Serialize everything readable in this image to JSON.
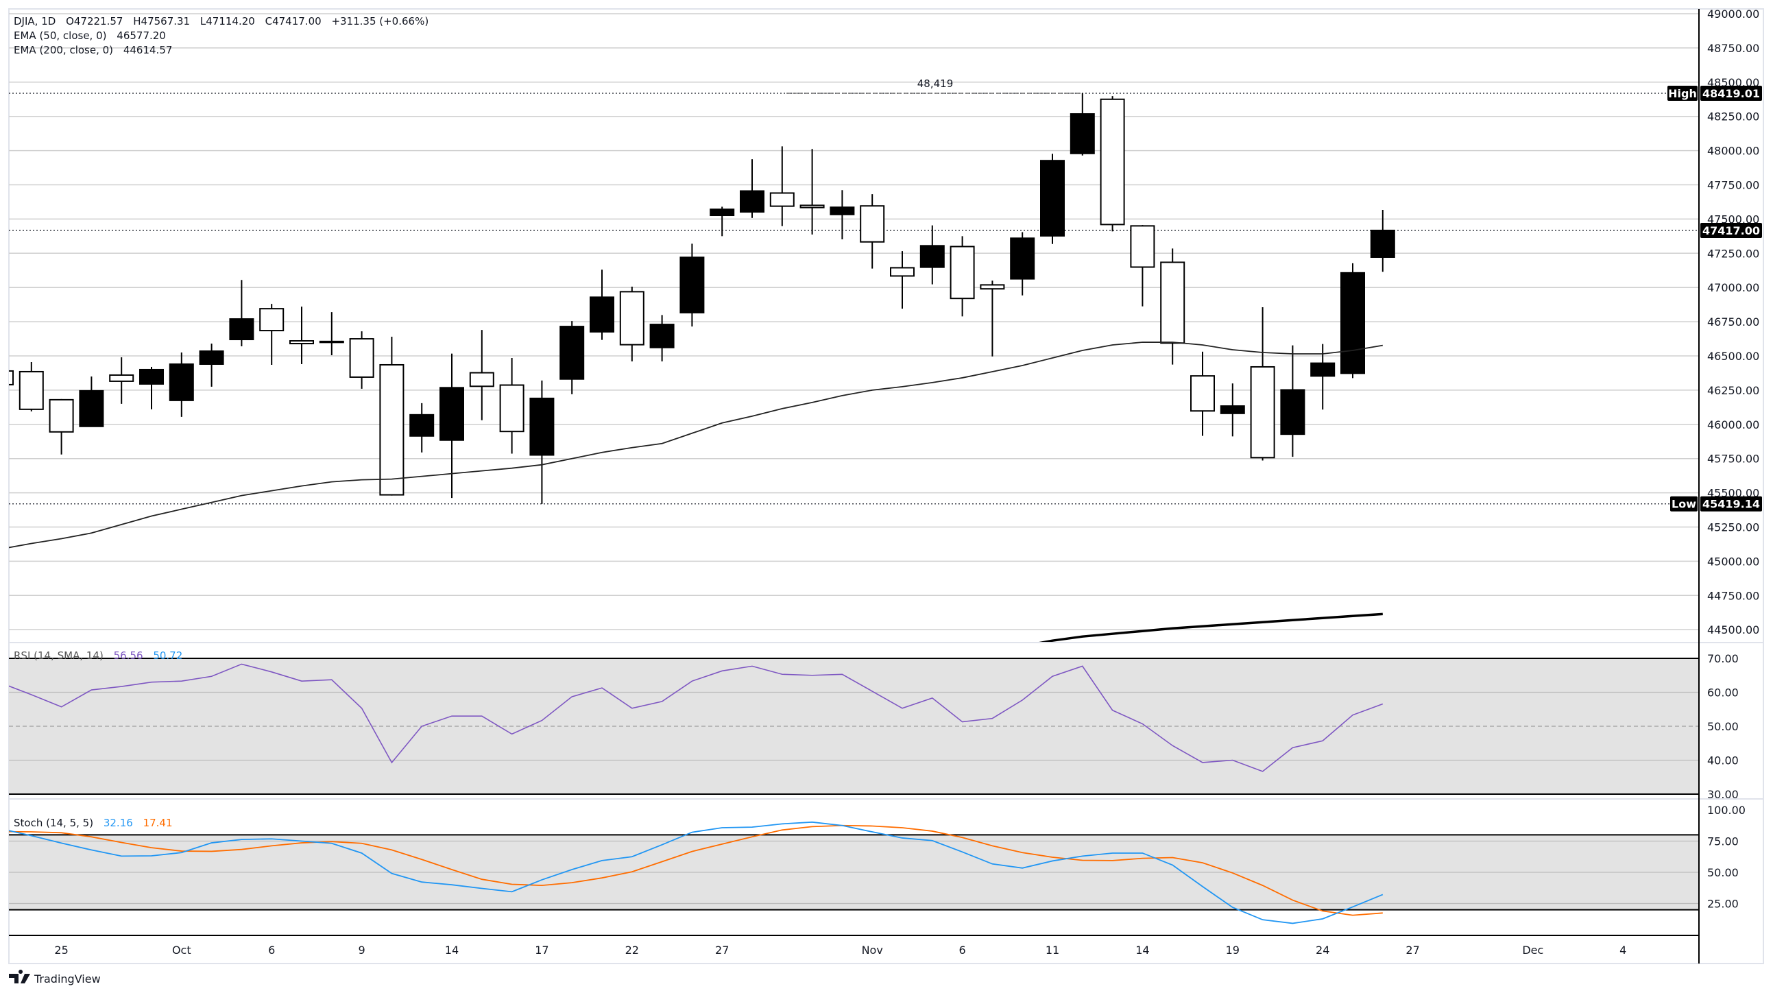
{
  "header": {
    "symbol": "DJIA, 1D",
    "open": "O47221.57",
    "high": "H47567.31",
    "low": "L47114.20",
    "close": "C47417.00",
    "change": "+311.35 (+0.66%)",
    "ema50_label": "EMA (50, close, 0)",
    "ema50_value": "46577.20",
    "ema200_label": "EMA (200, close, 0)",
    "ema200_value": "44614.57"
  },
  "price_tags": {
    "high_label": "High",
    "high_value": "48419.01",
    "low_label": "Low",
    "low_value": "45419.14",
    "last_value": "47417.00",
    "range_high_annotation": "48,419"
  },
  "rsi_legend": {
    "label": "RSI (14, SMA, 14)",
    "rsi": "56.56",
    "sma": "50.72"
  },
  "stoch_legend": {
    "label": "Stoch (14, 5, 5)",
    "k": "32.16",
    "d": "17.41"
  },
  "time_axis": [
    "25",
    "Oct",
    "6",
    "9",
    "14",
    "17",
    "22",
    "27",
    "Nov",
    "6",
    "11",
    "14",
    "19",
    "24",
    "27",
    "Dec",
    "4"
  ],
  "brand": "TradingView",
  "colors": {
    "up": "#000000",
    "down": "#ffffff",
    "rsi": "#7e57c2",
    "rsi_sma": "#2196f3",
    "stoch_k": "#2196f3",
    "stoch_d": "#ff6d00",
    "band": "#e3e3e3",
    "grid": "#cfcfcf"
  },
  "chart_data": [
    {
      "type": "candlestick",
      "title": "DJIA, 1D",
      "ylim": [
        44500,
        49000
      ],
      "yticks": [
        "49000.00",
        "48750.00",
        "48500.00",
        "48250.00",
        "48000.00",
        "47750.00",
        "47500.00",
        "47250.00",
        "47000.00",
        "46750.00",
        "46500.00",
        "46250.00",
        "46000.00",
        "45750.00",
        "45500.00",
        "45250.00",
        "45000.00",
        "44750.00",
        "44500.00"
      ],
      "grid": true,
      "dates": [
        "Sep 23",
        "Sep 24",
        "Sep 25",
        "Sep 26",
        "Sep 29",
        "Sep 30",
        "Oct 1",
        "Oct 2",
        "Oct 3",
        "Oct 6",
        "Oct 7",
        "Oct 8",
        "Oct 9",
        "Oct 10",
        "Oct 13",
        "Oct 14",
        "Oct 15",
        "Oct 16",
        "Oct 17",
        "Oct 20",
        "Oct 21",
        "Oct 22",
        "Oct 23",
        "Oct 24",
        "Oct 27",
        "Oct 28",
        "Oct 29",
        "Oct 30",
        "Oct 31",
        "Nov 3",
        "Nov 4",
        "Nov 5",
        "Nov 6",
        "Nov 7",
        "Nov 10",
        "Nov 11",
        "Nov 12",
        "Nov 13",
        "Nov 14",
        "Nov 17",
        "Nov 18",
        "Nov 19",
        "Nov 20",
        "Nov 21",
        "Nov 24",
        "Nov 25",
        "Nov 26"
      ],
      "ohlc": [
        [
          46390,
          46450,
          46150,
          46290
        ],
        [
          46385,
          46455,
          46095,
          46110
        ],
        [
          46180,
          46185,
          45780,
          45945
        ],
        [
          45985,
          46350,
          45985,
          46245
        ],
        [
          46360,
          46490,
          46150,
          46315
        ],
        [
          46295,
          46420,
          46110,
          46400
        ],
        [
          46175,
          46525,
          46055,
          46440
        ],
        [
          46440,
          46590,
          46275,
          46535
        ],
        [
          46620,
          47055,
          46570,
          46770
        ],
        [
          46845,
          46880,
          46435,
          46685
        ],
        [
          46610,
          46860,
          46440,
          46590
        ],
        [
          46605,
          46820,
          46505,
          46606
        ],
        [
          46625,
          46680,
          46260,
          46345
        ],
        [
          46435,
          46640,
          45480,
          45485
        ],
        [
          45915,
          46155,
          45795,
          46070
        ],
        [
          45885,
          46517,
          45462,
          46268
        ],
        [
          46377,
          46690,
          46030,
          46278
        ],
        [
          46287,
          46485,
          45786,
          45948
        ],
        [
          45776,
          46320,
          45419.14,
          46190
        ],
        [
          46331,
          46755,
          46220,
          46715
        ],
        [
          46676,
          47130,
          46617,
          46929
        ],
        [
          46969,
          47006,
          46460,
          46582
        ],
        [
          46561,
          46799,
          46460,
          46730
        ],
        [
          46816,
          47320,
          46715,
          47220
        ],
        [
          47527,
          47590,
          47375,
          47571
        ],
        [
          47552,
          47937,
          47508,
          47705
        ],
        [
          47690,
          48031,
          47448,
          47594
        ],
        [
          47600,
          48012,
          47387,
          47584
        ],
        [
          47533,
          47711,
          47352,
          47586
        ],
        [
          47596,
          47682,
          47138,
          47333
        ],
        [
          47144,
          47266,
          46845,
          47084
        ],
        [
          47148,
          47454,
          47023,
          47305
        ],
        [
          47299,
          47375,
          46789,
          46920
        ],
        [
          47019,
          47050,
          46496,
          46990
        ],
        [
          47063,
          47404,
          46942,
          47360
        ],
        [
          47377,
          47977,
          47318,
          47927
        ],
        [
          47979,
          48419.01,
          47964,
          48268
        ],
        [
          48375,
          48398,
          47410,
          47460
        ],
        [
          47450,
          47456,
          46862,
          47149
        ],
        [
          47184,
          47285,
          46437,
          46594
        ],
        [
          46354,
          46531,
          45916,
          46098
        ],
        [
          46080,
          46299,
          45912,
          46134
        ],
        [
          46420,
          46856,
          45736,
          45757
        ],
        [
          45928,
          46577,
          45763,
          46252
        ],
        [
          46353,
          46587,
          46108,
          46447
        ],
        [
          46373,
          47177,
          46338,
          47107
        ],
        [
          47221.57,
          47567.31,
          47114.2,
          47417.0
        ]
      ],
      "series": [
        {
          "name": "EMA (50, close, 0)",
          "values": [
            45090,
            45130,
            45165,
            45206,
            45268,
            45330,
            45380,
            45430,
            45480,
            45515,
            45550,
            45580,
            45595,
            45600,
            45620,
            45640,
            45660,
            45680,
            45705,
            45750,
            45795,
            45830,
            45860,
            45935,
            46010,
            46060,
            46115,
            46160,
            46210,
            46250,
            46275,
            46305,
            46340,
            46385,
            46430,
            46485,
            46540,
            46580,
            46600,
            46600,
            46580,
            46545,
            46525,
            46515,
            46515,
            46540,
            46577.2
          ]
        },
        {
          "name": "EMA (200, close, 0)",
          "values": [
            null,
            null,
            null,
            null,
            null,
            null,
            null,
            null,
            null,
            null,
            null,
            null,
            null,
            null,
            null,
            null,
            null,
            null,
            null,
            null,
            null,
            null,
            null,
            null,
            null,
            null,
            null,
            null,
            null,
            null,
            null,
            null,
            null,
            null,
            44380,
            44420,
            44450,
            44470,
            44490,
            44510,
            44525,
            44540,
            44555,
            44570,
            44585,
            44600,
            44614.57
          ]
        }
      ]
    },
    {
      "type": "line",
      "title": "RSI (14, SMA, 14)",
      "ylim": [
        30,
        70
      ],
      "yticks": [
        "70.00",
        "60.00",
        "50.00",
        "40.00",
        "30.00"
      ],
      "bands": [
        30,
        70
      ],
      "series": [
        {
          "name": "RSI",
          "values": [
            62.7,
            59.3,
            55.7,
            60.7,
            61.7,
            63,
            63.3,
            64.7,
            68.3,
            66,
            63.3,
            63.7,
            55.3,
            39.3,
            50,
            53,
            53,
            47.7,
            51.7,
            58.7,
            61.3,
            55.3,
            57.3,
            63.3,
            66.3,
            67.7,
            65.3,
            65,
            65.3,
            60.3,
            55.3,
            58.3,
            51.3,
            52.3,
            57.7,
            64.7,
            67.7,
            54.7,
            50.7,
            44.3,
            39.3,
            40,
            36.7,
            43.7,
            45.7,
            53.3,
            56.56
          ]
        }
      ]
    },
    {
      "type": "line",
      "title": "Stoch (14, 5, 5)",
      "ylim": [
        0,
        100
      ],
      "yticks": [
        "100.00",
        "75.00",
        "50.00",
        "25.00"
      ],
      "bands": [
        20,
        80
      ],
      "series": [
        {
          "name": "%K",
          "values": [
            84.8,
            79.3,
            73.4,
            67.9,
            63,
            63.2,
            65.8,
            73.6,
            76.3,
            76.8,
            75,
            73.2,
            65.4,
            49.1,
            42.2,
            40,
            37.1,
            34.4,
            44,
            52.2,
            59.4,
            62.5,
            72.1,
            82.1,
            85.7,
            86.2,
            88.8,
            90.2,
            87.5,
            82.4,
            77.5,
            75.4,
            66.3,
            56.7,
            53.4,
            59.1,
            63,
            65.4,
            65.4,
            55.8,
            38.6,
            21.9,
            12,
            9.1,
            12.7,
            22.3,
            32.16
          ]
        },
        {
          "name": "%D",
          "values": [
            82.6,
            82.4,
            81.7,
            78.4,
            73.9,
            69.7,
            67,
            66.8,
            68.3,
            71.2,
            73.6,
            74.6,
            73.2,
            67.9,
            60.3,
            52.2,
            44.4,
            40.4,
            39.5,
            41.7,
            45.5,
            50.4,
            58.5,
            66.7,
            72.6,
            78.4,
            83.9,
            86.6,
            87.5,
            87.1,
            85.7,
            83,
            77.9,
            71.2,
            65.8,
            62.1,
            59.6,
            59.4,
            61.2,
            61.8,
            57.6,
            49.5,
            39.5,
            27.7,
            19,
            15.6,
            17.41
          ]
        }
      ]
    }
  ]
}
